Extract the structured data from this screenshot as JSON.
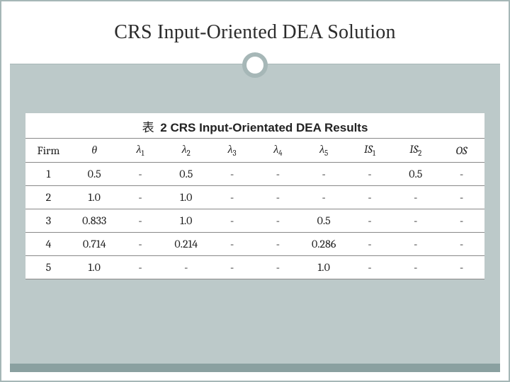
{
  "title": "CRS Input-Oriented DEA Solution",
  "caption_prefix": "表",
  "caption_text": "2 CRS Input-Orientated DEA Results",
  "colors": {
    "body_bg": "#bcc9c9",
    "accent": "#a6b7b7",
    "strip": "#8aa0a0",
    "border": "#888888",
    "text": "#222222"
  },
  "table": {
    "columns": [
      {
        "label": "Firm",
        "italic": false,
        "sub": null
      },
      {
        "label": "θ",
        "italic": true,
        "sub": null
      },
      {
        "label": "λ",
        "italic": true,
        "sub": "1"
      },
      {
        "label": "λ",
        "italic": true,
        "sub": "2"
      },
      {
        "label": "λ",
        "italic": true,
        "sub": "3"
      },
      {
        "label": "λ",
        "italic": true,
        "sub": "4"
      },
      {
        "label": "λ",
        "italic": true,
        "sub": "5"
      },
      {
        "label": "IS",
        "italic": true,
        "sub": "1"
      },
      {
        "label": "IS",
        "italic": true,
        "sub": "2"
      },
      {
        "label": "OS",
        "italic": true,
        "sub": null
      }
    ],
    "rows": [
      [
        "1",
        "0.5",
        "-",
        "0.5",
        "-",
        "-",
        "-",
        "-",
        "0.5",
        "-"
      ],
      [
        "2",
        "1.0",
        "-",
        "1.0",
        "-",
        "-",
        "-",
        "-",
        "-",
        "-"
      ],
      [
        "3",
        "0.833",
        "-",
        "1.0",
        "-",
        "-",
        "0.5",
        "-",
        "-",
        "-"
      ],
      [
        "4",
        "0.714",
        "-",
        "0.214",
        "-",
        "-",
        "0.286",
        "-",
        "-",
        "-"
      ],
      [
        "5",
        "1.0",
        "-",
        "-",
        "-",
        "-",
        "1.0",
        "-",
        "-",
        "-"
      ]
    ]
  }
}
